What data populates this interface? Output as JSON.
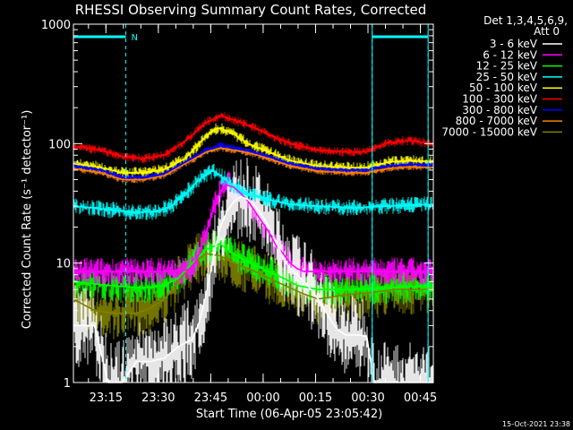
{
  "chart_data": {
    "type": "line",
    "title": "RHESSI Observing Summary Count Rates, Corrected",
    "xlabel": "Start Time (06-Apr-05 23:05:42)",
    "ylabel": "Corrected Count Rate (s⁻¹ detector⁻¹)",
    "yscale": "log",
    "ylim": [
      1,
      1000
    ],
    "xlim_minutes_after_23_05_42": [
      0,
      103
    ],
    "yticks": [
      {
        "value": 1,
        "label": "1"
      },
      {
        "value": 10,
        "label": "10"
      },
      {
        "value": 100,
        "label": "100"
      },
      {
        "value": 1000,
        "label": "1000"
      }
    ],
    "xticks": [
      {
        "label": "23:15",
        "value": 9.3
      },
      {
        "label": "23:30",
        "value": 24.3
      },
      {
        "label": "23:45",
        "value": 39.3
      },
      {
        "label": "00:00",
        "value": 54.3
      },
      {
        "label": "00:15",
        "value": 69.3
      },
      {
        "label": "00:30",
        "value": 84.3
      },
      {
        "label": "00:45",
        "value": 99.3
      }
    ],
    "legend_header": [
      "Det 1,3,4,5,6,9,",
      "Att 0"
    ],
    "legend_placement": "right",
    "footer_date": "15-Oct-2021 23:38",
    "night_marker": {
      "label": "N",
      "bar_ranges": [
        [
          0,
          15
        ],
        [
          85.5,
          101.5
        ]
      ],
      "dashed_lines": [
        15,
        85.5,
        101.5
      ],
      "color": "#00ffff"
    },
    "series": [
      {
        "name": "3 - 6 keV",
        "color": "#ffffff",
        "points": [
          [
            0,
            3
          ],
          [
            2,
            3
          ],
          [
            4,
            3
          ],
          [
            6,
            3
          ],
          [
            10,
            1
          ],
          [
            14,
            1
          ],
          [
            18,
            1.5
          ],
          [
            22,
            1.5
          ],
          [
            26,
            1.6
          ],
          [
            30,
            2
          ],
          [
            34,
            2.3
          ],
          [
            36,
            3.2
          ],
          [
            38,
            5.5
          ],
          [
            40,
            11
          ],
          [
            42,
            20
          ],
          [
            44,
            27
          ],
          [
            46,
            33
          ],
          [
            48,
            36
          ],
          [
            50,
            34
          ],
          [
            52,
            30
          ],
          [
            54,
            25
          ],
          [
            56,
            20
          ],
          [
            58,
            15
          ],
          [
            60,
            11
          ],
          [
            62,
            9
          ],
          [
            64,
            8
          ],
          [
            66,
            7
          ],
          [
            68,
            6
          ],
          [
            70,
            5
          ],
          [
            72,
            4
          ],
          [
            74,
            3.2
          ],
          [
            76,
            2.7
          ],
          [
            78,
            2.5
          ],
          [
            82,
            2.5
          ],
          [
            84,
            2.4
          ],
          [
            86,
            1
          ],
          [
            100,
            1
          ],
          [
            103,
            1
          ]
        ]
      },
      {
        "name": "6 - 12 keV",
        "color": "#ff00ff",
        "points": [
          [
            0,
            8.5
          ],
          [
            10,
            8.5
          ],
          [
            20,
            8.5
          ],
          [
            30,
            8.5
          ],
          [
            34,
            9
          ],
          [
            36,
            12
          ],
          [
            38,
            18
          ],
          [
            40,
            28
          ],
          [
            42,
            40
          ],
          [
            44,
            45
          ],
          [
            46,
            43
          ],
          [
            48,
            38
          ],
          [
            50,
            33
          ],
          [
            52,
            27
          ],
          [
            54,
            22
          ],
          [
            56,
            18
          ],
          [
            58,
            14
          ],
          [
            60,
            12
          ],
          [
            62,
            10
          ],
          [
            64,
            9
          ],
          [
            66,
            8.5
          ],
          [
            75,
            8.5
          ],
          [
            85,
            8.5
          ],
          [
            95,
            8.5
          ],
          [
            103,
            8.5
          ]
        ]
      },
      {
        "name": "12 - 25 keV",
        "color": "#00ff00",
        "points": [
          [
            0,
            7
          ],
          [
            10,
            6.5
          ],
          [
            20,
            6.2
          ],
          [
            26,
            6.5
          ],
          [
            30,
            7.5
          ],
          [
            34,
            10
          ],
          [
            38,
            13
          ],
          [
            42,
            14.5
          ],
          [
            44,
            13
          ],
          [
            48,
            11
          ],
          [
            52,
            9.5
          ],
          [
            56,
            8.5
          ],
          [
            60,
            7.5
          ],
          [
            64,
            6.5
          ],
          [
            70,
            6
          ],
          [
            80,
            6
          ],
          [
            90,
            6.2
          ],
          [
            103,
            6.5
          ]
        ]
      },
      {
        "name": "25 - 50 keV",
        "color": "#00ffff",
        "points": [
          [
            0,
            30
          ],
          [
            6,
            29
          ],
          [
            12,
            27.5
          ],
          [
            18,
            26.5
          ],
          [
            24,
            27
          ],
          [
            28,
            30
          ],
          [
            32,
            38
          ],
          [
            36,
            50
          ],
          [
            40,
            60
          ],
          [
            42,
            54
          ],
          [
            46,
            44
          ],
          [
            50,
            38
          ],
          [
            54,
            35
          ],
          [
            58,
            33
          ],
          [
            62,
            31
          ],
          [
            70,
            30
          ],
          [
            80,
            29
          ],
          [
            90,
            30
          ],
          [
            103,
            31
          ]
        ]
      },
      {
        "name": "50 - 100 keV",
        "color": "#ffff00",
        "points": [
          [
            0,
            68
          ],
          [
            8,
            63
          ],
          [
            14,
            57
          ],
          [
            20,
            57
          ],
          [
            26,
            61
          ],
          [
            32,
            75
          ],
          [
            36,
            100
          ],
          [
            40,
            130
          ],
          [
            42,
            135
          ],
          [
            46,
            120
          ],
          [
            50,
            100
          ],
          [
            56,
            85
          ],
          [
            62,
            72
          ],
          [
            70,
            65
          ],
          [
            78,
            63
          ],
          [
            84,
            63
          ],
          [
            90,
            70
          ],
          [
            96,
            72
          ],
          [
            103,
            71
          ]
        ]
      },
      {
        "name": "100 - 300 keV",
        "color": "#ff0000",
        "points": [
          [
            0,
            95
          ],
          [
            8,
            88
          ],
          [
            14,
            78
          ],
          [
            20,
            75
          ],
          [
            26,
            80
          ],
          [
            32,
            105
          ],
          [
            38,
            150
          ],
          [
            42,
            170
          ],
          [
            44,
            165
          ],
          [
            48,
            150
          ],
          [
            52,
            135
          ],
          [
            56,
            118
          ],
          [
            62,
            100
          ],
          [
            70,
            88
          ],
          [
            78,
            85
          ],
          [
            84,
            86
          ],
          [
            90,
            102
          ],
          [
            96,
            106
          ],
          [
            103,
            100
          ]
        ]
      },
      {
        "name": "300 - 800 keV",
        "color": "#0000ff",
        "points": [
          [
            0,
            65
          ],
          [
            8,
            60
          ],
          [
            14,
            52
          ],
          [
            20,
            52
          ],
          [
            26,
            56
          ],
          [
            32,
            70
          ],
          [
            38,
            88
          ],
          [
            42,
            96
          ],
          [
            46,
            92
          ],
          [
            50,
            87
          ],
          [
            56,
            78
          ],
          [
            62,
            68
          ],
          [
            70,
            62
          ],
          [
            78,
            60
          ],
          [
            84,
            60
          ],
          [
            90,
            65
          ],
          [
            96,
            67
          ],
          [
            103,
            66
          ]
        ]
      },
      {
        "name": "800 - 7000 keV",
        "color": "#ff8000",
        "points": [
          [
            0,
            62
          ],
          [
            8,
            57
          ],
          [
            14,
            50
          ],
          [
            20,
            50
          ],
          [
            26,
            54
          ],
          [
            32,
            68
          ],
          [
            38,
            85
          ],
          [
            42,
            92
          ],
          [
            46,
            88
          ],
          [
            50,
            84
          ],
          [
            56,
            75
          ],
          [
            62,
            65
          ],
          [
            70,
            59
          ],
          [
            78,
            57
          ],
          [
            84,
            57
          ],
          [
            90,
            62
          ],
          [
            96,
            64
          ],
          [
            103,
            63
          ]
        ]
      },
      {
        "name": "7000 - 15000 keV",
        "color": "#808000",
        "points": [
          [
            0,
            5
          ],
          [
            6,
            4
          ],
          [
            12,
            3.8
          ],
          [
            18,
            3.8
          ],
          [
            22,
            4.2
          ],
          [
            26,
            5
          ],
          [
            30,
            7
          ],
          [
            34,
            10
          ],
          [
            38,
            12
          ],
          [
            42,
            11.5
          ],
          [
            46,
            10
          ],
          [
            50,
            9
          ],
          [
            54,
            8
          ],
          [
            58,
            7
          ],
          [
            62,
            6.2
          ],
          [
            66,
            5.5
          ],
          [
            70,
            5
          ],
          [
            74,
            5.2
          ],
          [
            80,
            5.5
          ],
          [
            86,
            5.7
          ],
          [
            92,
            6
          ],
          [
            98,
            6
          ],
          [
            103,
            6
          ]
        ]
      }
    ]
  }
}
